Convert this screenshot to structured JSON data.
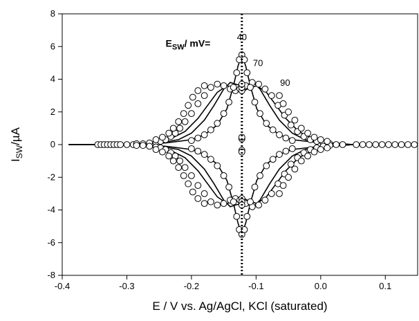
{
  "chart_data": {
    "type": "line",
    "title": "",
    "xlabel": "E / V vs. Ag/AgCl, KCl (saturated)",
    "ylabel": {
      "main": "I",
      "sub": "SW",
      "rest": "/µA"
    },
    "xlim": [
      -0.4,
      0.15
    ],
    "ylim": [
      -8,
      8
    ],
    "xticks": [
      -0.4,
      -0.3,
      -0.2,
      -0.1,
      0.0,
      0.1
    ],
    "xtick_labels": [
      "-0.4",
      "-0.3",
      "-0.2",
      "-0.1",
      "0.0",
      "0.1"
    ],
    "yticks": [
      -8,
      -6,
      -4,
      -2,
      0,
      2,
      4,
      6,
      8
    ],
    "ytick_labels": [
      "-8",
      "-6",
      "-4",
      "-2",
      "0",
      "2",
      "4",
      "6",
      "8"
    ],
    "grid": false,
    "annotations": {
      "header": {
        "main": "E",
        "sub": "SW",
        "rest": "/ mV=",
        "x": -0.24,
        "y": 6.0
      },
      "labels": [
        {
          "text": "40",
          "x": -0.122,
          "y": 6.4
        },
        {
          "text": "70",
          "x": -0.097,
          "y": 4.8
        },
        {
          "text": "90",
          "x": -0.055,
          "y": 3.6
        }
      ]
    },
    "vertical_line": {
      "x": -0.122,
      "style": "dotted"
    },
    "center": -0.122,
    "series": [
      {
        "esw": "40",
        "fit_x": [
          -0.39,
          -0.3,
          -0.24,
          -0.2,
          -0.18,
          -0.16,
          -0.145,
          -0.135,
          -0.128,
          -0.122,
          -0.116,
          -0.109,
          -0.099,
          -0.084,
          -0.064,
          -0.044,
          0.0,
          0.05,
          0.15
        ],
        "fit_y": [
          0,
          0,
          0.1,
          0.3,
          0.6,
          1.2,
          2.2,
          3.6,
          4.8,
          5.5,
          4.8,
          3.6,
          2.2,
          1.2,
          0.6,
          0.3,
          0.1,
          0,
          0
        ]
      },
      {
        "esw": "70",
        "fit_x": [
          -0.39,
          -0.3,
          -0.25,
          -0.22,
          -0.2,
          -0.18,
          -0.165,
          -0.15,
          -0.14,
          -0.132,
          -0.122,
          -0.112,
          -0.104,
          -0.094,
          -0.079,
          -0.064,
          -0.044,
          -0.024,
          0.0,
          0.05,
          0.15
        ],
        "fit_y": [
          0,
          0,
          0.1,
          0.3,
          0.7,
          1.5,
          2.4,
          3.4,
          3.8,
          3.7,
          3.6,
          3.7,
          3.8,
          3.4,
          2.4,
          1.5,
          0.7,
          0.3,
          0.1,
          0,
          0
        ]
      },
      {
        "esw": "90",
        "fit_x": [
          -0.39,
          -0.3,
          -0.26,
          -0.23,
          -0.21,
          -0.19,
          -0.175,
          -0.16,
          -0.145,
          -0.13,
          -0.122,
          -0.114,
          -0.099,
          -0.084,
          -0.069,
          -0.054,
          -0.034,
          -0.014,
          0.016,
          0.05,
          0.15
        ],
        "fit_y": [
          0,
          0,
          0.1,
          0.4,
          0.8,
          1.6,
          2.4,
          3.2,
          3.6,
          3.4,
          3.2,
          3.4,
          3.6,
          3.2,
          2.4,
          1.6,
          0.8,
          0.4,
          0.1,
          0,
          0
        ]
      }
    ],
    "points": [
      [
        -0.345,
        0.0
      ],
      [
        -0.34,
        0.0
      ],
      [
        -0.335,
        0.0
      ],
      [
        -0.33,
        0.0
      ],
      [
        -0.325,
        0.0
      ],
      [
        -0.32,
        0.0
      ],
      [
        -0.315,
        0.0
      ],
      [
        -0.31,
        0.0
      ],
      [
        -0.3,
        0.0
      ],
      [
        -0.29,
        0.0
      ],
      [
        -0.285,
        0.05
      ],
      [
        -0.275,
        0.05
      ],
      [
        -0.265,
        0.1
      ],
      [
        -0.255,
        0.15
      ],
      [
        -0.248,
        0.2
      ],
      [
        -0.24,
        0.3
      ],
      [
        -0.232,
        0.5
      ],
      [
        -0.225,
        0.7
      ],
      [
        -0.218,
        1.0
      ],
      [
        -0.21,
        1.4
      ],
      [
        -0.2,
        1.9
      ],
      [
        -0.19,
        2.5
      ],
      [
        -0.18,
        3.0
      ],
      [
        -0.17,
        3.5
      ],
      [
        -0.16,
        3.7
      ],
      [
        -0.15,
        3.6
      ],
      [
        -0.14,
        3.4
      ],
      [
        -0.132,
        3.3
      ],
      [
        -0.125,
        3.4
      ],
      [
        -0.116,
        3.6
      ],
      [
        -0.106,
        3.8
      ],
      [
        -0.096,
        3.7
      ],
      [
        -0.086,
        3.4
      ],
      [
        -0.076,
        3.0
      ],
      [
        -0.066,
        2.4
      ],
      [
        -0.056,
        1.8
      ],
      [
        -0.046,
        1.2
      ],
      [
        -0.036,
        0.8
      ],
      [
        -0.026,
        0.5
      ],
      [
        -0.016,
        0.3
      ],
      [
        -0.006,
        0.2
      ],
      [
        0.004,
        0.1
      ],
      [
        0.014,
        0.05
      ],
      [
        0.024,
        0.0
      ],
      [
        0.034,
        0.0
      ],
      [
        -0.255,
        0.3
      ],
      [
        -0.245,
        0.45
      ],
      [
        -0.235,
        0.7
      ],
      [
        -0.228,
        1.0
      ],
      [
        -0.22,
        1.4
      ],
      [
        -0.212,
        1.9
      ],
      [
        -0.205,
        2.4
      ],
      [
        -0.198,
        2.9
      ],
      [
        -0.19,
        3.3
      ],
      [
        -0.18,
        3.6
      ],
      [
        -0.064,
        3.0
      ],
      [
        -0.058,
        2.5
      ],
      [
        -0.05,
        2.0
      ],
      [
        -0.04,
        1.5
      ],
      [
        -0.03,
        1.0
      ],
      [
        -0.02,
        0.7
      ],
      [
        -0.01,
        0.45
      ],
      [
        0.0,
        0.3
      ],
      [
        0.01,
        0.2
      ],
      [
        -0.2,
        0.25
      ],
      [
        -0.19,
        0.4
      ],
      [
        -0.18,
        0.6
      ],
      [
        -0.17,
        0.9
      ],
      [
        -0.16,
        1.3
      ],
      [
        -0.15,
        1.9
      ],
      [
        -0.142,
        2.6
      ],
      [
        -0.135,
        3.5
      ],
      [
        -0.13,
        4.4
      ],
      [
        -0.126,
        5.2
      ],
      [
        -0.122,
        5.5
      ],
      [
        -0.118,
        5.2
      ],
      [
        -0.114,
        4.4
      ],
      [
        -0.109,
        3.5
      ],
      [
        -0.102,
        2.6
      ],
      [
        -0.094,
        1.9
      ],
      [
        -0.084,
        1.3
      ],
      [
        -0.074,
        0.9
      ],
      [
        -0.064,
        0.6
      ],
      [
        -0.054,
        0.4
      ],
      [
        -0.044,
        0.25
      ],
      [
        -0.122,
        0.35
      ],
      [
        -0.122,
        0.45
      ],
      [
        -0.122,
        3.3
      ],
      [
        -0.122,
        3.5
      ],
      [
        -0.122,
        3.7
      ],
      [
        0.055,
        0.0
      ],
      [
        0.065,
        0.0
      ],
      [
        0.075,
        0.0
      ],
      [
        0.085,
        0.0
      ],
      [
        0.095,
        0.0
      ],
      [
        0.105,
        0.0
      ],
      [
        0.115,
        0.0
      ],
      [
        0.125,
        0.0
      ],
      [
        0.135,
        0.0
      ],
      [
        0.145,
        0.0
      ]
    ]
  }
}
